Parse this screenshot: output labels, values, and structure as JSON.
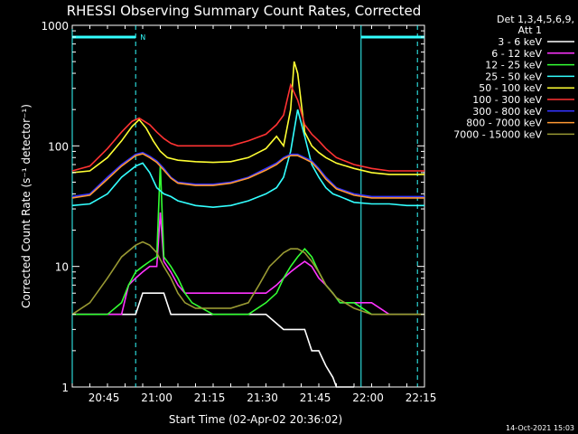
{
  "chart_data": {
    "type": "line",
    "title": "RHESSI Observing Summary Count Rates, Corrected",
    "xlabel": "Start Time (02-Apr-02 20:36:02)",
    "ylabel": "Corrected Count Rate (s⁻¹ detector⁻¹)",
    "x_unit": "minutes after 20:36:02",
    "xlim": [
      0,
      100
    ],
    "ylim": [
      1,
      1000
    ],
    "yscale": "log",
    "x_ticks": [
      {
        "pos": 9,
        "label": "20:45"
      },
      {
        "pos": 24,
        "label": "21:00"
      },
      {
        "pos": 39,
        "label": "21:15"
      },
      {
        "pos": 54,
        "label": "21:30"
      },
      {
        "pos": 69,
        "label": "21:45"
      },
      {
        "pos": 84,
        "label": "22:00"
      },
      {
        "pos": 99,
        "label": "22:15"
      }
    ],
    "y_ticks": [
      {
        "value": 1,
        "label": "1"
      },
      {
        "value": 10,
        "label": "10"
      },
      {
        "value": 100,
        "label": "100"
      },
      {
        "value": 1000,
        "label": "1000"
      }
    ],
    "legend_header": [
      "Det 1,3,4,5,6,9,",
      "Att 1"
    ],
    "legend_position": "right",
    "flag_label": "N",
    "flag_bars": [
      [
        0,
        18
      ],
      [
        82,
        100
      ]
    ],
    "vertical_lines": [
      {
        "x": 0,
        "style": "solid"
      },
      {
        "x": 18,
        "style": "dashed"
      },
      {
        "x": 82,
        "style": "solid"
      },
      {
        "x": 98,
        "style": "dashed"
      }
    ],
    "timestamp": "14-Oct-2021 15:03",
    "series": [
      {
        "name": "3 - 6 keV",
        "color": "#ffffff",
        "points": [
          [
            0,
            4
          ],
          [
            5,
            4
          ],
          [
            10,
            4
          ],
          [
            15,
            4
          ],
          [
            18,
            4
          ],
          [
            20,
            6
          ],
          [
            23,
            6
          ],
          [
            26,
            6
          ],
          [
            28,
            4
          ],
          [
            30,
            4
          ],
          [
            35,
            4
          ],
          [
            40,
            4
          ],
          [
            45,
            4
          ],
          [
            50,
            4
          ],
          [
            55,
            4
          ],
          [
            60,
            3
          ],
          [
            63,
            3
          ],
          [
            66,
            3
          ],
          [
            68,
            2
          ],
          [
            70,
            2
          ],
          [
            72,
            1.5
          ],
          [
            74,
            1.2
          ],
          [
            75,
            1
          ],
          [
            77,
            1
          ],
          [
            80,
            1
          ]
        ]
      },
      {
        "name": "6 - 12 keV",
        "color": "#ff33ff",
        "points": [
          [
            0,
            4
          ],
          [
            10,
            4
          ],
          [
            14,
            4
          ],
          [
            16,
            7
          ],
          [
            18,
            8
          ],
          [
            20,
            9
          ],
          [
            22,
            10
          ],
          [
            24,
            10
          ],
          [
            25,
            28
          ],
          [
            26,
            11
          ],
          [
            28,
            9
          ],
          [
            30,
            7
          ],
          [
            32,
            6
          ],
          [
            34,
            6
          ],
          [
            40,
            6
          ],
          [
            45,
            6
          ],
          [
            50,
            6
          ],
          [
            55,
            6
          ],
          [
            58,
            7
          ],
          [
            60,
            8
          ],
          [
            62,
            9
          ],
          [
            64,
            10
          ],
          [
            66,
            11
          ],
          [
            68,
            10
          ],
          [
            70,
            8
          ],
          [
            72,
            7
          ],
          [
            74,
            6
          ],
          [
            76,
            5
          ],
          [
            80,
            5
          ],
          [
            85,
            5
          ],
          [
            90,
            4
          ],
          [
            95,
            4
          ],
          [
            100,
            4
          ]
        ]
      },
      {
        "name": "12 - 25 keV",
        "color": "#33ff33",
        "points": [
          [
            0,
            4
          ],
          [
            10,
            4
          ],
          [
            14,
            5
          ],
          [
            16,
            7
          ],
          [
            18,
            9
          ],
          [
            20,
            10
          ],
          [
            22,
            11
          ],
          [
            24,
            12
          ],
          [
            25,
            70
          ],
          [
            26,
            12
          ],
          [
            28,
            10
          ],
          [
            30,
            8
          ],
          [
            32,
            6
          ],
          [
            34,
            5
          ],
          [
            40,
            4
          ],
          [
            45,
            4
          ],
          [
            50,
            4
          ],
          [
            55,
            5
          ],
          [
            58,
            6
          ],
          [
            60,
            8
          ],
          [
            62,
            10
          ],
          [
            64,
            12
          ],
          [
            66,
            14
          ],
          [
            68,
            12
          ],
          [
            70,
            9
          ],
          [
            72,
            7
          ],
          [
            74,
            6
          ],
          [
            76,
            5
          ],
          [
            80,
            5
          ],
          [
            85,
            4
          ],
          [
            90,
            4
          ],
          [
            95,
            4
          ],
          [
            100,
            4
          ]
        ]
      },
      {
        "name": "25 - 50 keV",
        "color": "#33ffff",
        "points": [
          [
            0,
            32
          ],
          [
            5,
            33
          ],
          [
            10,
            40
          ],
          [
            14,
            55
          ],
          [
            18,
            68
          ],
          [
            20,
            72
          ],
          [
            22,
            60
          ],
          [
            24,
            45
          ],
          [
            26,
            40
          ],
          [
            28,
            38
          ],
          [
            30,
            35
          ],
          [
            35,
            32
          ],
          [
            40,
            31
          ],
          [
            45,
            32
          ],
          [
            50,
            35
          ],
          [
            55,
            40
          ],
          [
            58,
            45
          ],
          [
            60,
            55
          ],
          [
            62,
            90
          ],
          [
            64,
            200
          ],
          [
            66,
            120
          ],
          [
            68,
            70
          ],
          [
            70,
            55
          ],
          [
            72,
            45
          ],
          [
            74,
            40
          ],
          [
            76,
            38
          ],
          [
            80,
            34
          ],
          [
            85,
            33
          ],
          [
            90,
            33
          ],
          [
            95,
            32
          ],
          [
            100,
            32
          ]
        ]
      },
      {
        "name": "50 - 100 keV",
        "color": "#ffff33",
        "points": [
          [
            0,
            60
          ],
          [
            5,
            62
          ],
          [
            10,
            80
          ],
          [
            14,
            110
          ],
          [
            17,
            145
          ],
          [
            19,
            165
          ],
          [
            21,
            140
          ],
          [
            23,
            110
          ],
          [
            25,
            90
          ],
          [
            27,
            80
          ],
          [
            30,
            76
          ],
          [
            35,
            74
          ],
          [
            40,
            73
          ],
          [
            45,
            74
          ],
          [
            50,
            80
          ],
          [
            55,
            95
          ],
          [
            58,
            120
          ],
          [
            60,
            100
          ],
          [
            62,
            200
          ],
          [
            63,
            500
          ],
          [
            64,
            400
          ],
          [
            66,
            130
          ],
          [
            68,
            100
          ],
          [
            70,
            88
          ],
          [
            72,
            80
          ],
          [
            75,
            72
          ],
          [
            80,
            65
          ],
          [
            85,
            60
          ],
          [
            90,
            58
          ],
          [
            95,
            58
          ],
          [
            100,
            58
          ]
        ]
      },
      {
        "name": "100 - 300 keV",
        "color": "#ff3333",
        "points": [
          [
            0,
            62
          ],
          [
            5,
            68
          ],
          [
            10,
            95
          ],
          [
            14,
            130
          ],
          [
            17,
            160
          ],
          [
            19,
            170
          ],
          [
            22,
            150
          ],
          [
            24,
            130
          ],
          [
            26,
            115
          ],
          [
            28,
            105
          ],
          [
            30,
            100
          ],
          [
            35,
            100
          ],
          [
            40,
            100
          ],
          [
            45,
            100
          ],
          [
            50,
            110
          ],
          [
            55,
            125
          ],
          [
            58,
            150
          ],
          [
            60,
            180
          ],
          [
            62,
            320
          ],
          [
            64,
            240
          ],
          [
            66,
            150
          ],
          [
            68,
            125
          ],
          [
            70,
            110
          ],
          [
            72,
            95
          ],
          [
            75,
            80
          ],
          [
            80,
            70
          ],
          [
            85,
            65
          ],
          [
            90,
            62
          ],
          [
            95,
            62
          ],
          [
            100,
            62
          ]
        ]
      },
      {
        "name": "300 - 800 keV",
        "color": "#3333ff",
        "points": [
          [
            0,
            38
          ],
          [
            5,
            40
          ],
          [
            10,
            55
          ],
          [
            14,
            70
          ],
          [
            18,
            85
          ],
          [
            20,
            88
          ],
          [
            22,
            82
          ],
          [
            24,
            75
          ],
          [
            26,
            65
          ],
          [
            28,
            55
          ],
          [
            30,
            50
          ],
          [
            35,
            48
          ],
          [
            40,
            48
          ],
          [
            45,
            50
          ],
          [
            50,
            55
          ],
          [
            55,
            65
          ],
          [
            58,
            72
          ],
          [
            60,
            80
          ],
          [
            62,
            85
          ],
          [
            64,
            85
          ],
          [
            66,
            80
          ],
          [
            68,
            75
          ],
          [
            70,
            65
          ],
          [
            72,
            55
          ],
          [
            75,
            45
          ],
          [
            80,
            40
          ],
          [
            85,
            38
          ],
          [
            90,
            38
          ],
          [
            95,
            38
          ],
          [
            100,
            38
          ]
        ]
      },
      {
        "name": "800 - 7000 keV",
        "color": "#ff9933",
        "points": [
          [
            0,
            37
          ],
          [
            5,
            39
          ],
          [
            10,
            53
          ],
          [
            14,
            68
          ],
          [
            18,
            83
          ],
          [
            20,
            86
          ],
          [
            22,
            80
          ],
          [
            24,
            73
          ],
          [
            26,
            63
          ],
          [
            28,
            54
          ],
          [
            30,
            49
          ],
          [
            35,
            47
          ],
          [
            40,
            47
          ],
          [
            45,
            49
          ],
          [
            50,
            54
          ],
          [
            55,
            63
          ],
          [
            58,
            70
          ],
          [
            60,
            78
          ],
          [
            62,
            83
          ],
          [
            64,
            83
          ],
          [
            66,
            78
          ],
          [
            68,
            73
          ],
          [
            70,
            63
          ],
          [
            72,
            53
          ],
          [
            75,
            44
          ],
          [
            80,
            39
          ],
          [
            85,
            37
          ],
          [
            90,
            37
          ],
          [
            95,
            37
          ],
          [
            100,
            37
          ]
        ]
      },
      {
        "name": "7000 - 15000 keV",
        "color": "#999933",
        "points": [
          [
            0,
            4
          ],
          [
            5,
            5
          ],
          [
            10,
            8
          ],
          [
            14,
            12
          ],
          [
            18,
            15
          ],
          [
            20,
            16
          ],
          [
            22,
            15
          ],
          [
            24,
            13
          ],
          [
            26,
            10
          ],
          [
            28,
            8
          ],
          [
            30,
            6
          ],
          [
            32,
            5
          ],
          [
            35,
            4.5
          ],
          [
            40,
            4.5
          ],
          [
            45,
            4.5
          ],
          [
            50,
            5
          ],
          [
            53,
            7
          ],
          [
            56,
            10
          ],
          [
            60,
            13
          ],
          [
            62,
            14
          ],
          [
            64,
            14
          ],
          [
            66,
            13
          ],
          [
            68,
            11
          ],
          [
            70,
            9
          ],
          [
            72,
            7
          ],
          [
            75,
            5.5
          ],
          [
            80,
            4.5
          ],
          [
            85,
            4
          ],
          [
            90,
            4
          ],
          [
            95,
            4
          ],
          [
            100,
            4
          ]
        ]
      }
    ]
  }
}
